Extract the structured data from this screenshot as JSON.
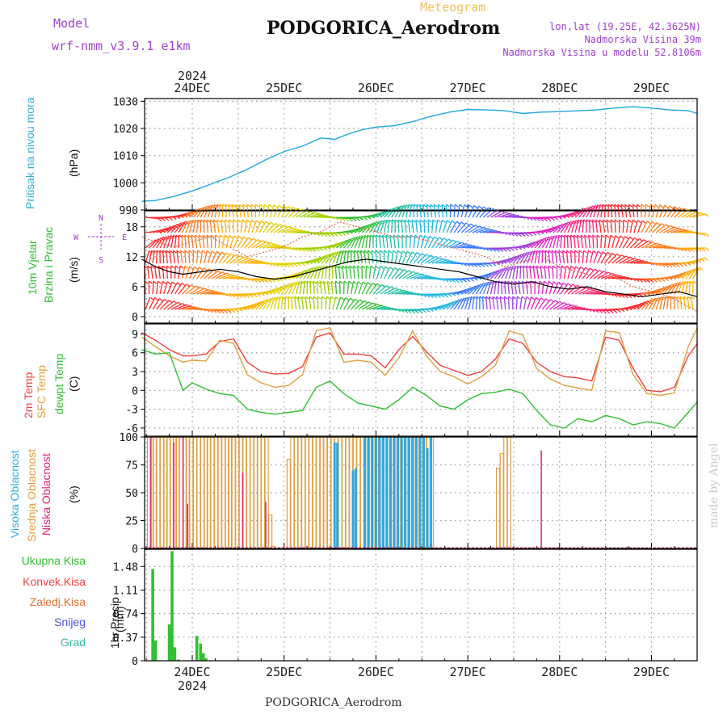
{
  "header": {
    "meteogram": "Meteogram",
    "title": "PODGORICA_Aerodrom",
    "model_label": "Model",
    "model_name": "wrf-nmm_v3.9.1 e1km",
    "lonlat": "lon,lat (19.25E, 42.3625N)",
    "elevation": "Nadmorska Visina 39m",
    "model_elevation": "Nadmorska Visina u modelu 52.8106m",
    "year_top": "2024",
    "year_bottom": "2024"
  },
  "footer": "PODGORICA_Aerodrom",
  "credit": "made by Angel",
  "days": [
    "24DEC",
    "25DEC",
    "26DEC",
    "27DEC",
    "28DEC",
    "29DEC"
  ],
  "colors": {
    "pressure": "#1fa8e0",
    "temp2m": "#f04040",
    "sfc": "#e0a040",
    "dewpt": "#30c030",
    "high_cloud": "#30a8e0",
    "mid_cloud": "#e0a040",
    "low_cloud": "#e0207a",
    "total_precip": "#30c030",
    "label_green": "#30c030",
    "label_pink": "#e0207a",
    "label_blue": "#30b0e0",
    "label_orange": "#e0a040",
    "label_red": "#f04040",
    "label_purple": "#a040d0"
  },
  "chart_data": [
    {
      "type": "line",
      "panel": "pressure",
      "ylabel": "Pritisak na nivou mora",
      "yunit": "(hPa)",
      "yticks": [
        "990",
        "1000",
        "1010",
        "1020",
        "1030"
      ],
      "ylim": [
        990,
        1031
      ],
      "xlim_day": [
        -0.55,
        5.5
      ],
      "grid": true,
      "series": [
        {
          "x": [
            -0.55,
            -0.4,
            -0.2,
            0.0,
            0.2,
            0.4,
            0.6,
            0.8,
            1.0,
            1.2,
            1.4,
            1.55,
            1.7,
            1.85,
            2.0,
            2.2,
            2.4,
            2.6,
            2.8,
            3.0,
            3.2,
            3.4,
            3.6,
            3.8,
            4.0,
            4.2,
            4.4,
            4.6,
            4.8,
            5.0,
            5.2,
            5.4,
            5.5
          ],
          "values": [
            993.2,
            993.5,
            995,
            997,
            999.5,
            1002,
            1005,
            1008.5,
            1011.5,
            1013.5,
            1016.5,
            1016,
            1018,
            1019.5,
            1020.5,
            1021,
            1022.5,
            1024.5,
            1026,
            1027,
            1026.8,
            1026.5,
            1025.5,
            1026,
            1026.2,
            1026.5,
            1026.8,
            1027.5,
            1028,
            1027.5,
            1026.8,
            1026.5,
            1025.5
          ]
        }
      ]
    },
    {
      "type": "line",
      "panel": "wind",
      "ylabel": [
        "10m Vjetar",
        "Brzina i Pravac"
      ],
      "yunit": "(m/s)",
      "compass": [
        "W",
        "E",
        "S",
        "N"
      ],
      "yticks": [
        "0",
        "6",
        "12",
        "18"
      ],
      "ylim": [
        -1.3,
        21.2
      ],
      "xlim_day": [
        -0.55,
        5.5
      ],
      "grid": true,
      "series": [
        {
          "name": "speed",
          "x": [
            -0.55,
            -0.4,
            -0.25,
            -0.1,
            0.1,
            0.3,
            0.5,
            0.7,
            0.9,
            1.1,
            1.3,
            1.5,
            1.7,
            1.9,
            2.1,
            2.3,
            2.5,
            2.7,
            2.9,
            3.1,
            3.3,
            3.5,
            3.7,
            3.9,
            4.1,
            4.3,
            4.5,
            4.7,
            4.9,
            5.1,
            5.3,
            5.5
          ],
          "values": [
            11.5,
            10,
            9,
            8.5,
            9,
            9.5,
            9,
            8,
            7.5,
            8,
            9,
            10,
            11,
            11.5,
            11,
            10.5,
            10,
            9.5,
            9,
            8,
            7,
            6.5,
            7,
            6,
            5.5,
            6,
            5,
            4.5,
            4,
            4.5,
            5,
            4
          ]
        },
        {
          "name": "gust",
          "x": [
            -0.55,
            -0.4,
            -0.2,
            0.0,
            0.2,
            0.4,
            0.6,
            0.8,
            1.0,
            1.2,
            1.4,
            1.6,
            1.8,
            2.0,
            2.2,
            2.4,
            2.6,
            2.8,
            3.0,
            3.2,
            3.4,
            3.6,
            3.8,
            4.0,
            4.2,
            4.4,
            4.6,
            4.8,
            5.0,
            5.2,
            5.4,
            5.5
          ],
          "values": [
            16,
            15,
            14,
            15,
            16,
            14,
            12,
            13,
            14,
            16,
            17,
            19,
            18,
            17,
            16,
            16,
            15,
            14,
            13,
            12,
            10,
            11,
            12,
            10,
            9,
            8,
            8,
            6,
            5,
            4,
            2,
            1
          ]
        }
      ],
      "barb_colors_by_day": [
        "#ff2a2a",
        "#ff7a1a",
        "#ffb000",
        "#e0d000",
        "#a0d000",
        "#30c030",
        "#20c0a0",
        "#20b8e0",
        "#3a7aff",
        "#a040e0",
        "#e020c0",
        "#ff2070"
      ]
    },
    {
      "type": "line",
      "panel": "temperature",
      "ylabel": [
        "2m Temp",
        "SFC Temp",
        "dewpt Temp"
      ],
      "yunit": "(C)",
      "yticks": [
        "-6",
        "-3",
        "0",
        "3",
        "6",
        "9"
      ],
      "ylim": [
        -7.3,
        10.6
      ],
      "xlim_day": [
        -0.55,
        5.5
      ],
      "grid": true,
      "series": [
        {
          "name": "2m Temp",
          "x": [
            -0.55,
            -0.4,
            -0.25,
            -0.1,
            0.0,
            0.15,
            0.3,
            0.45,
            0.6,
            0.75,
            0.9,
            1.05,
            1.2,
            1.35,
            1.5,
            1.65,
            1.8,
            1.95,
            2.1,
            2.25,
            2.4,
            2.55,
            2.7,
            2.85,
            3.0,
            3.15,
            3.3,
            3.45,
            3.6,
            3.75,
            3.9,
            4.05,
            4.2,
            4.35,
            4.5,
            4.65,
            4.8,
            4.95,
            5.1,
            5.25,
            5.4,
            5.5
          ],
          "values": [
            9.2,
            8,
            6.5,
            5.5,
            5.5,
            5.8,
            7.8,
            8.2,
            4.5,
            3,
            2.6,
            2.7,
            3.8,
            8.5,
            9.2,
            5.8,
            5.8,
            5.5,
            3.6,
            6.5,
            8.6,
            6.2,
            4,
            3.2,
            2.4,
            3,
            5,
            8.2,
            7.5,
            4.5,
            3,
            2.2,
            2,
            1.5,
            8.5,
            8,
            3.5,
            0,
            -0.2,
            0.5,
            5.5,
            7.5
          ]
        },
        {
          "name": "SFC Temp",
          "x": [
            -0.55,
            -0.4,
            -0.25,
            -0.1,
            0.0,
            0.15,
            0.3,
            0.45,
            0.6,
            0.75,
            0.9,
            1.05,
            1.2,
            1.35,
            1.5,
            1.65,
            1.8,
            1.95,
            2.1,
            2.25,
            2.4,
            2.55,
            2.7,
            2.85,
            3.0,
            3.15,
            3.3,
            3.45,
            3.6,
            3.75,
            3.9,
            4.05,
            4.2,
            4.35,
            4.5,
            4.65,
            4.8,
            4.95,
            5.1,
            5.25,
            5.4,
            5.5
          ],
          "values": [
            8.5,
            7,
            5.5,
            4.5,
            4.8,
            4.7,
            8,
            7.5,
            2.5,
            1.2,
            0.5,
            0.8,
            2.5,
            9.5,
            10,
            4.5,
            4.8,
            4.5,
            2.4,
            5.2,
            9.5,
            5.5,
            3,
            2.2,
            1,
            2.2,
            4,
            9.5,
            8.8,
            3.5,
            1.8,
            0.8,
            0.4,
            0,
            9.5,
            9.2,
            2.5,
            -0.5,
            -0.8,
            -0.4,
            7,
            10
          ]
        },
        {
          "name": "dewpt Temp",
          "x": [
            -0.55,
            -0.4,
            -0.25,
            -0.1,
            0.0,
            0.15,
            0.3,
            0.45,
            0.6,
            0.75,
            0.9,
            1.05,
            1.2,
            1.35,
            1.5,
            1.65,
            1.8,
            1.95,
            2.1,
            2.25,
            2.4,
            2.55,
            2.7,
            2.85,
            3.0,
            3.15,
            3.3,
            3.45,
            3.6,
            3.75,
            3.9,
            4.05,
            4.2,
            4.35,
            4.5,
            4.65,
            4.8,
            4.95,
            5.1,
            5.25,
            5.4,
            5.5
          ],
          "values": [
            6.5,
            5.8,
            6,
            0,
            1.2,
            0.2,
            -0.5,
            -0.8,
            -3,
            -3.5,
            -3.8,
            -3.5,
            -3.2,
            0.5,
            1.5,
            -0.5,
            -2,
            -2.5,
            -3,
            -1.5,
            0.5,
            -0.8,
            -2.5,
            -3,
            -1.5,
            -0.5,
            -0.3,
            0.2,
            -0.5,
            -3.2,
            -5.5,
            -6,
            -4.5,
            -5,
            -4,
            -4.5,
            -5.5,
            -5,
            -5.3,
            -6,
            -3.5,
            -1.8
          ]
        }
      ]
    },
    {
      "type": "bar",
      "panel": "cloud",
      "ylabel": [
        "Visoka Oblacnost",
        "Srednja Oblacnost",
        "Niska Oblacnost"
      ],
      "yunit": "(%)",
      "yticks": [
        "0",
        "25",
        "50",
        "75",
        "100"
      ],
      "ylim": [
        0,
        100
      ],
      "xlim_day": [
        -0.55,
        5.5
      ],
      "grid": true,
      "series": [
        {
          "name": "Srednja Oblacnost",
          "x": [
            -0.47,
            -0.44,
            -0.41,
            -0.37,
            -0.33,
            -0.29,
            -0.26,
            -0.22,
            -0.19,
            -0.16,
            -0.12,
            -0.08,
            -0.05,
            -0.01,
            0.03,
            0.07,
            0.11,
            0.15,
            0.18,
            0.22,
            0.26,
            0.3,
            0.34,
            0.38,
            0.41,
            0.45,
            0.49,
            0.53,
            0.57,
            0.61,
            0.65,
            0.69,
            0.73,
            0.77,
            0.81,
            0.85,
            0.88,
            0.92,
            0.97,
            1.02,
            1.05,
            1.09,
            1.13,
            1.17,
            1.21,
            1.25,
            1.29,
            1.33,
            1.37,
            1.41,
            1.45,
            1.49,
            1.53,
            1.57,
            1.61,
            1.65,
            1.69,
            1.73,
            1.77,
            1.81,
            1.85,
            1.89,
            1.93,
            1.97,
            2.01,
            2.05,
            2.09,
            2.13,
            2.17,
            2.21,
            2.25,
            2.29,
            2.33,
            2.37,
            2.41,
            2.45,
            2.49,
            2.53,
            2.57,
            2.61,
            3.33,
            3.37,
            3.41,
            3.45
          ],
          "values": [
            100,
            100,
            100,
            100,
            100,
            100,
            100,
            100,
            100,
            100,
            100,
            100,
            100,
            100,
            100,
            100,
            100,
            100,
            100,
            100,
            100,
            100,
            100,
            100,
            100,
            100,
            100,
            100,
            100,
            100,
            100,
            100,
            100,
            100,
            100,
            30,
            2,
            0,
            0,
            0,
            80,
            100,
            100,
            100,
            100,
            100,
            100,
            100,
            100,
            100,
            100,
            100,
            100,
            100,
            100,
            100,
            100,
            100,
            100,
            100,
            100,
            100,
            100,
            100,
            100,
            100,
            100,
            100,
            100,
            100,
            100,
            100,
            100,
            100,
            100,
            100,
            100,
            100,
            100,
            100,
            72,
            85,
            100,
            100
          ]
        },
        {
          "name": "Visoka Oblacnost",
          "x": [
            1.55,
            1.58,
            1.75,
            1.78,
            1.88,
            1.92,
            1.96,
            2.0,
            2.04,
            2.08,
            2.12,
            2.16,
            2.2,
            2.24,
            2.28,
            2.32,
            2.36,
            2.4,
            2.44,
            2.48,
            2.52,
            2.56,
            2.6
          ],
          "values": [
            95,
            95,
            70,
            72,
            100,
            100,
            100,
            100,
            100,
            100,
            100,
            100,
            100,
            100,
            100,
            100,
            100,
            100,
            100,
            100,
            100,
            90,
            100
          ]
        },
        {
          "name": "Niska Oblacnost",
          "x": [
            -0.45,
            -0.2,
            -0.1,
            -0.05,
            0.55,
            0.8,
            3.8
          ],
          "values": [
            100,
            95,
            100,
            40,
            68,
            42,
            88
          ]
        }
      ]
    },
    {
      "type": "bar",
      "panel": "precip",
      "ylabel": "1hr Precip",
      "yunit": "(mm)",
      "legend": [
        "Ukupna Kisa",
        "Konvek.Kisa",
        "Zaledj.Kisa",
        "Snijeg",
        "Grad"
      ],
      "yticks": [
        "0",
        "0.37",
        "0.74",
        "1.11",
        "1.48"
      ],
      "ylim": [
        0,
        1.75
      ],
      "xlim_day": [
        -0.55,
        5.5
      ],
      "grid": true,
      "series": [
        {
          "name": "Ukupna Kisa",
          "x": [
            -0.43,
            -0.4,
            -0.25,
            -0.22,
            -0.19,
            -0.15,
            0.05,
            0.09,
            0.12,
            0.15
          ],
          "values": [
            1.44,
            0.32,
            0.57,
            1.72,
            0.21,
            0.02,
            0.39,
            0.27,
            0.12,
            0.04
          ]
        }
      ]
    }
  ]
}
